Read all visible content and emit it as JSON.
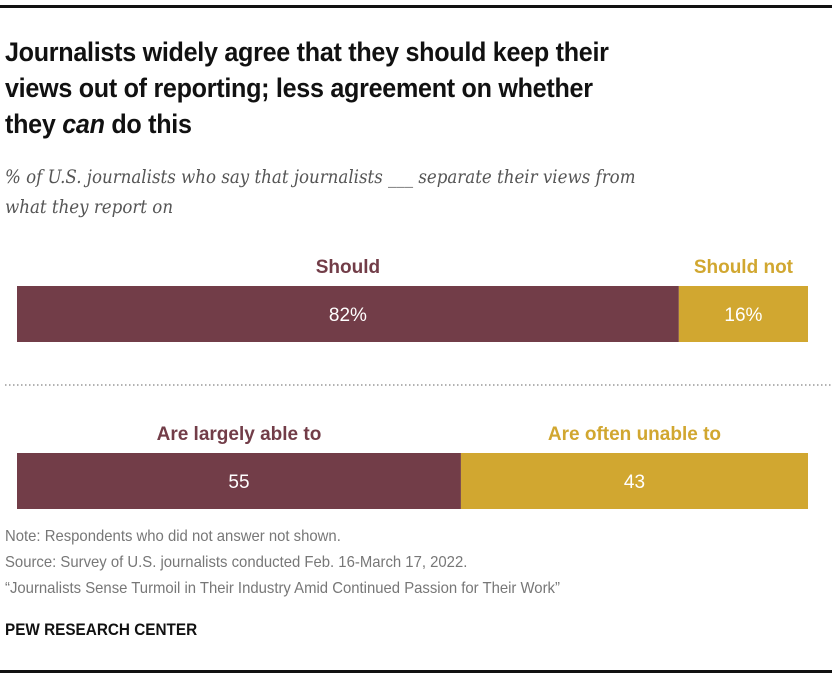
{
  "title": {
    "line1": "Journalists widely agree that they should keep their",
    "line2": "views out of reporting; less agreement on whether",
    "line3_pre": "they ",
    "line3_em": "can",
    "line3_post": " do this"
  },
  "subtitle": {
    "line1": "% of U.S. journalists who say that journalists ___ separate their views from",
    "line2": "what they report on"
  },
  "colors": {
    "maroon": "#723D48",
    "gold": "#D1A730",
    "divider": "#999999"
  },
  "chart_data": {
    "type": "bar",
    "orientation": "horizontal-stacked",
    "title": "Journalists widely agree that they should keep their views out of reporting; less agreement on whether they can do this",
    "subtitle": "% of U.S. journalists who say that journalists ___ separate their views from what they report on",
    "xlim": [
      0,
      100
    ],
    "grid": false,
    "rows": [
      {
        "segments": [
          {
            "name": "Should",
            "value": 82,
            "label": "82%",
            "color": "#723D48"
          },
          {
            "name": "Should not",
            "value": 16,
            "label": "16%",
            "color": "#D1A730"
          }
        ]
      },
      {
        "segments": [
          {
            "name": "Are largely able to",
            "value": 55,
            "label": "55",
            "color": "#723D48"
          },
          {
            "name": "Are often unable to",
            "value": 43,
            "label": "43",
            "color": "#D1A730"
          }
        ]
      }
    ]
  },
  "notes": {
    "note": "Note: Respondents who did not answer not shown.",
    "source": "Source: Survey of U.S. journalists conducted Feb. 16-March 17, 2022.",
    "report": "“Journalists Sense Turmoil in Their Industry Amid Continued Passion for Their Work”"
  },
  "brand": "PEW RESEARCH CENTER"
}
